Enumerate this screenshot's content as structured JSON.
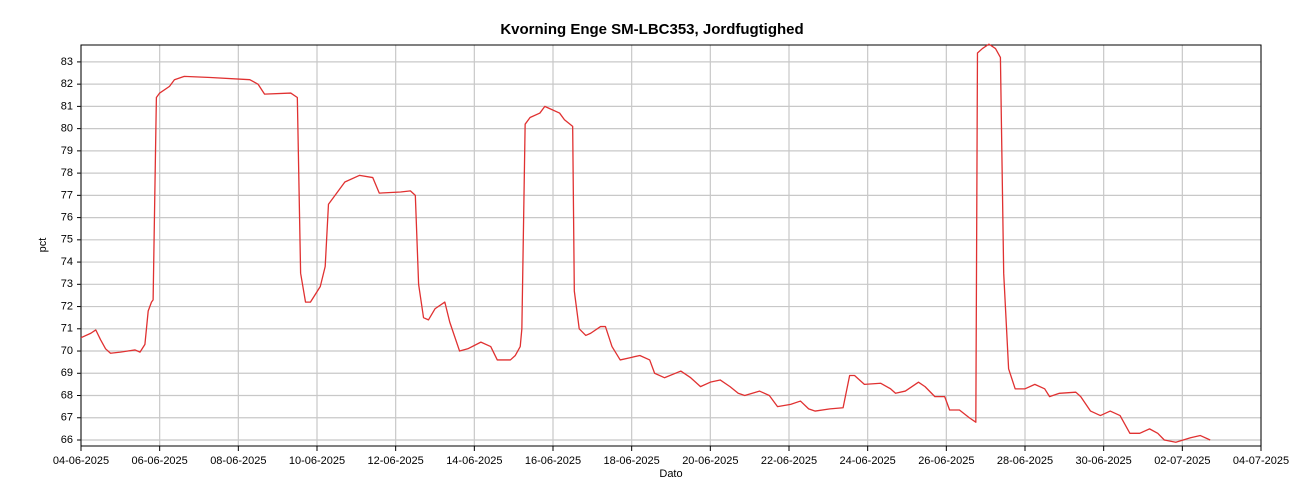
{
  "chart_data": {
    "type": "line",
    "title": "Kvorning Enge SM-LBC353, Jordfugtighed",
    "x_label": "Dato",
    "y_label": "pct",
    "grid": true,
    "xlim": [
      "2025-06-04T00:00",
      "2025-07-04T00:00"
    ],
    "xticks": [
      {
        "value": "2025-06-04T00:00",
        "label": "04-06-2025"
      },
      {
        "value": "2025-06-06T00:00",
        "label": "06-06-2025"
      },
      {
        "value": "2025-06-08T00:00",
        "label": "08-06-2025"
      },
      {
        "value": "2025-06-10T00:00",
        "label": "10-06-2025"
      },
      {
        "value": "2025-06-12T00:00",
        "label": "12-06-2025"
      },
      {
        "value": "2025-06-14T00:00",
        "label": "14-06-2025"
      },
      {
        "value": "2025-06-16T00:00",
        "label": "16-06-2025"
      },
      {
        "value": "2025-06-18T00:00",
        "label": "18-06-2025"
      },
      {
        "value": "2025-06-20T00:00",
        "label": "20-06-2025"
      },
      {
        "value": "2025-06-22T00:00",
        "label": "22-06-2025"
      },
      {
        "value": "2025-06-24T00:00",
        "label": "24-06-2025"
      },
      {
        "value": "2025-06-26T00:00",
        "label": "26-06-2025"
      },
      {
        "value": "2025-06-28T00:00",
        "label": "28-06-2025"
      },
      {
        "value": "2025-06-30T00:00",
        "label": "30-06-2025"
      },
      {
        "value": "2025-07-02T00:00",
        "label": "02-07-2025"
      },
      {
        "value": "2025-07-04T00:00",
        "label": "04-07-2025"
      }
    ],
    "ylim": [
      65.73,
      83.76
    ],
    "yticks": [
      66,
      67,
      68,
      69,
      70,
      71,
      72,
      73,
      74,
      75,
      76,
      77,
      78,
      79,
      80,
      81,
      82,
      83
    ],
    "x": [
      "2025-06-04T00:00",
      "2025-06-04T06:00",
      "2025-06-04T09:00",
      "2025-06-04T12:00",
      "2025-06-04T15:00",
      "2025-06-04T18:00",
      "2025-06-05T00:00",
      "2025-06-05T09:00",
      "2025-06-05T12:00",
      "2025-06-05T15:00",
      "2025-06-05T17:00",
      "2025-06-05T19:00",
      "2025-06-05T20:00",
      "2025-06-05T22:00",
      "2025-06-06T00:00",
      "2025-06-06T06:00",
      "2025-06-06T09:00",
      "2025-06-06T15:00",
      "2025-06-07T07:00",
      "2025-06-08T07:00",
      "2025-06-08T12:00",
      "2025-06-08T16:00",
      "2025-06-09T08:00",
      "2025-06-09T12:00",
      "2025-06-09T14:00",
      "2025-06-09T17:00",
      "2025-06-09T20:00",
      "2025-06-10T02:00",
      "2025-06-10T05:00",
      "2025-06-10T07:00",
      "2025-06-10T11:00",
      "2025-06-10T17:00",
      "2025-06-11T02:00",
      "2025-06-11T10:00",
      "2025-06-11T14:00",
      "2025-06-12T03:00",
      "2025-06-12T09:00",
      "2025-06-12T12:00",
      "2025-06-12T14:00",
      "2025-06-12T17:00",
      "2025-06-12T20:00",
      "2025-06-13T00:00",
      "2025-06-13T06:00",
      "2025-06-13T09:00",
      "2025-06-13T15:00",
      "2025-06-13T20:00",
      "2025-06-14T04:00",
      "2025-06-14T10:00",
      "2025-06-14T14:00",
      "2025-06-14T22:00",
      "2025-06-15T01:00",
      "2025-06-15T04:00",
      "2025-06-15T05:00",
      "2025-06-15T07:00",
      "2025-06-15T10:00",
      "2025-06-15T16:00",
      "2025-06-15T19:00",
      "2025-06-15T22:00",
      "2025-06-16T04:00",
      "2025-06-16T07:00",
      "2025-06-16T12:00",
      "2025-06-16T13:00",
      "2025-06-16T16:00",
      "2025-06-16T20:00",
      "2025-06-16T23:00",
      "2025-06-17T05:00",
      "2025-06-17T08:00",
      "2025-06-17T12:00",
      "2025-06-17T17:00",
      "2025-06-17T23:00",
      "2025-06-18T05:00",
      "2025-06-18T11:00",
      "2025-06-18T14:00",
      "2025-06-18T20:00",
      "2025-06-19T06:00",
      "2025-06-19T12:00",
      "2025-06-19T18:00",
      "2025-06-20T00:00",
      "2025-06-20T06:00",
      "2025-06-20T12:00",
      "2025-06-20T17:00",
      "2025-06-20T21:00",
      "2025-06-21T06:00",
      "2025-06-21T12:00",
      "2025-06-21T17:00",
      "2025-06-22T01:00",
      "2025-06-22T07:00",
      "2025-06-22T12:00",
      "2025-06-22T16:00",
      "2025-06-23T01:00",
      "2025-06-23T09:00",
      "2025-06-23T13:00",
      "2025-06-23T16:00",
      "2025-06-23T22:00",
      "2025-06-24T08:00",
      "2025-06-24T14:00",
      "2025-06-24T17:00",
      "2025-06-24T23:00",
      "2025-06-25T07:00",
      "2025-06-25T11:00",
      "2025-06-25T17:00",
      "2025-06-25T23:00",
      "2025-06-26T02:00",
      "2025-06-26T08:00",
      "2025-06-26T14:00",
      "2025-06-26T18:00",
      "2025-06-26T19:00",
      "2025-06-26T22:00",
      "2025-06-27T02:00",
      "2025-06-27T06:00",
      "2025-06-27T09:00",
      "2025-06-27T11:00",
      "2025-06-27T14:00",
      "2025-06-27T18:00",
      "2025-06-28T00:00",
      "2025-06-28T06:00",
      "2025-06-28T12:00",
      "2025-06-28T15:00",
      "2025-06-28T21:00",
      "2025-06-29T07:00",
      "2025-06-29T10:00",
      "2025-06-29T16:00",
      "2025-06-29T22:00",
      "2025-06-30T04:00",
      "2025-06-30T10:00",
      "2025-06-30T16:00",
      "2025-06-30T22:00",
      "2025-07-01T04:00",
      "2025-07-01T09:00",
      "2025-07-01T13:00",
      "2025-07-01T20:00",
      "2025-07-02T05:00",
      "2025-07-02T11:00",
      "2025-07-02T17:00"
    ],
    "series": [
      {
        "color": "#e03131",
        "values": [
          70.6,
          70.8,
          70.95,
          70.5,
          70.1,
          69.9,
          69.95,
          70.05,
          69.95,
          70.3,
          71.8,
          72.2,
          72.3,
          81.4,
          81.6,
          81.9,
          82.2,
          82.35,
          82.3,
          82.2,
          82.0,
          81.55,
          81.6,
          81.4,
          73.5,
          72.2,
          72.2,
          72.9,
          73.8,
          76.6,
          77.0,
          77.6,
          77.9,
          77.8,
          77.1,
          77.15,
          77.2,
          77.0,
          73.0,
          71.5,
          71.4,
          71.9,
          72.2,
          71.3,
          70.0,
          70.1,
          70.4,
          70.2,
          69.6,
          69.6,
          69.8,
          70.2,
          71.0,
          80.2,
          80.5,
          80.7,
          81.0,
          80.9,
          80.7,
          80.4,
          80.1,
          72.7,
          71.0,
          70.7,
          70.8,
          71.1,
          71.1,
          70.2,
          69.6,
          69.7,
          69.8,
          69.6,
          69.0,
          68.8,
          69.1,
          68.8,
          68.4,
          68.6,
          68.7,
          68.4,
          68.1,
          68.0,
          68.2,
          68.0,
          67.5,
          67.6,
          67.75,
          67.4,
          67.3,
          67.4,
          67.45,
          68.9,
          68.9,
          68.5,
          68.55,
          68.3,
          68.1,
          68.2,
          68.6,
          68.4,
          67.95,
          67.95,
          67.35,
          67.35,
          67.0,
          66.8,
          83.4,
          83.6,
          83.8,
          83.6,
          83.2,
          73.5,
          69.2,
          68.3,
          68.3,
          68.5,
          68.3,
          67.95,
          68.1,
          68.15,
          67.95,
          67.3,
          67.1,
          67.3,
          67.1,
          66.3,
          66.3,
          66.5,
          66.3,
          66.0,
          65.9,
          66.1,
          66.2,
          66.0
        ]
      }
    ]
  }
}
